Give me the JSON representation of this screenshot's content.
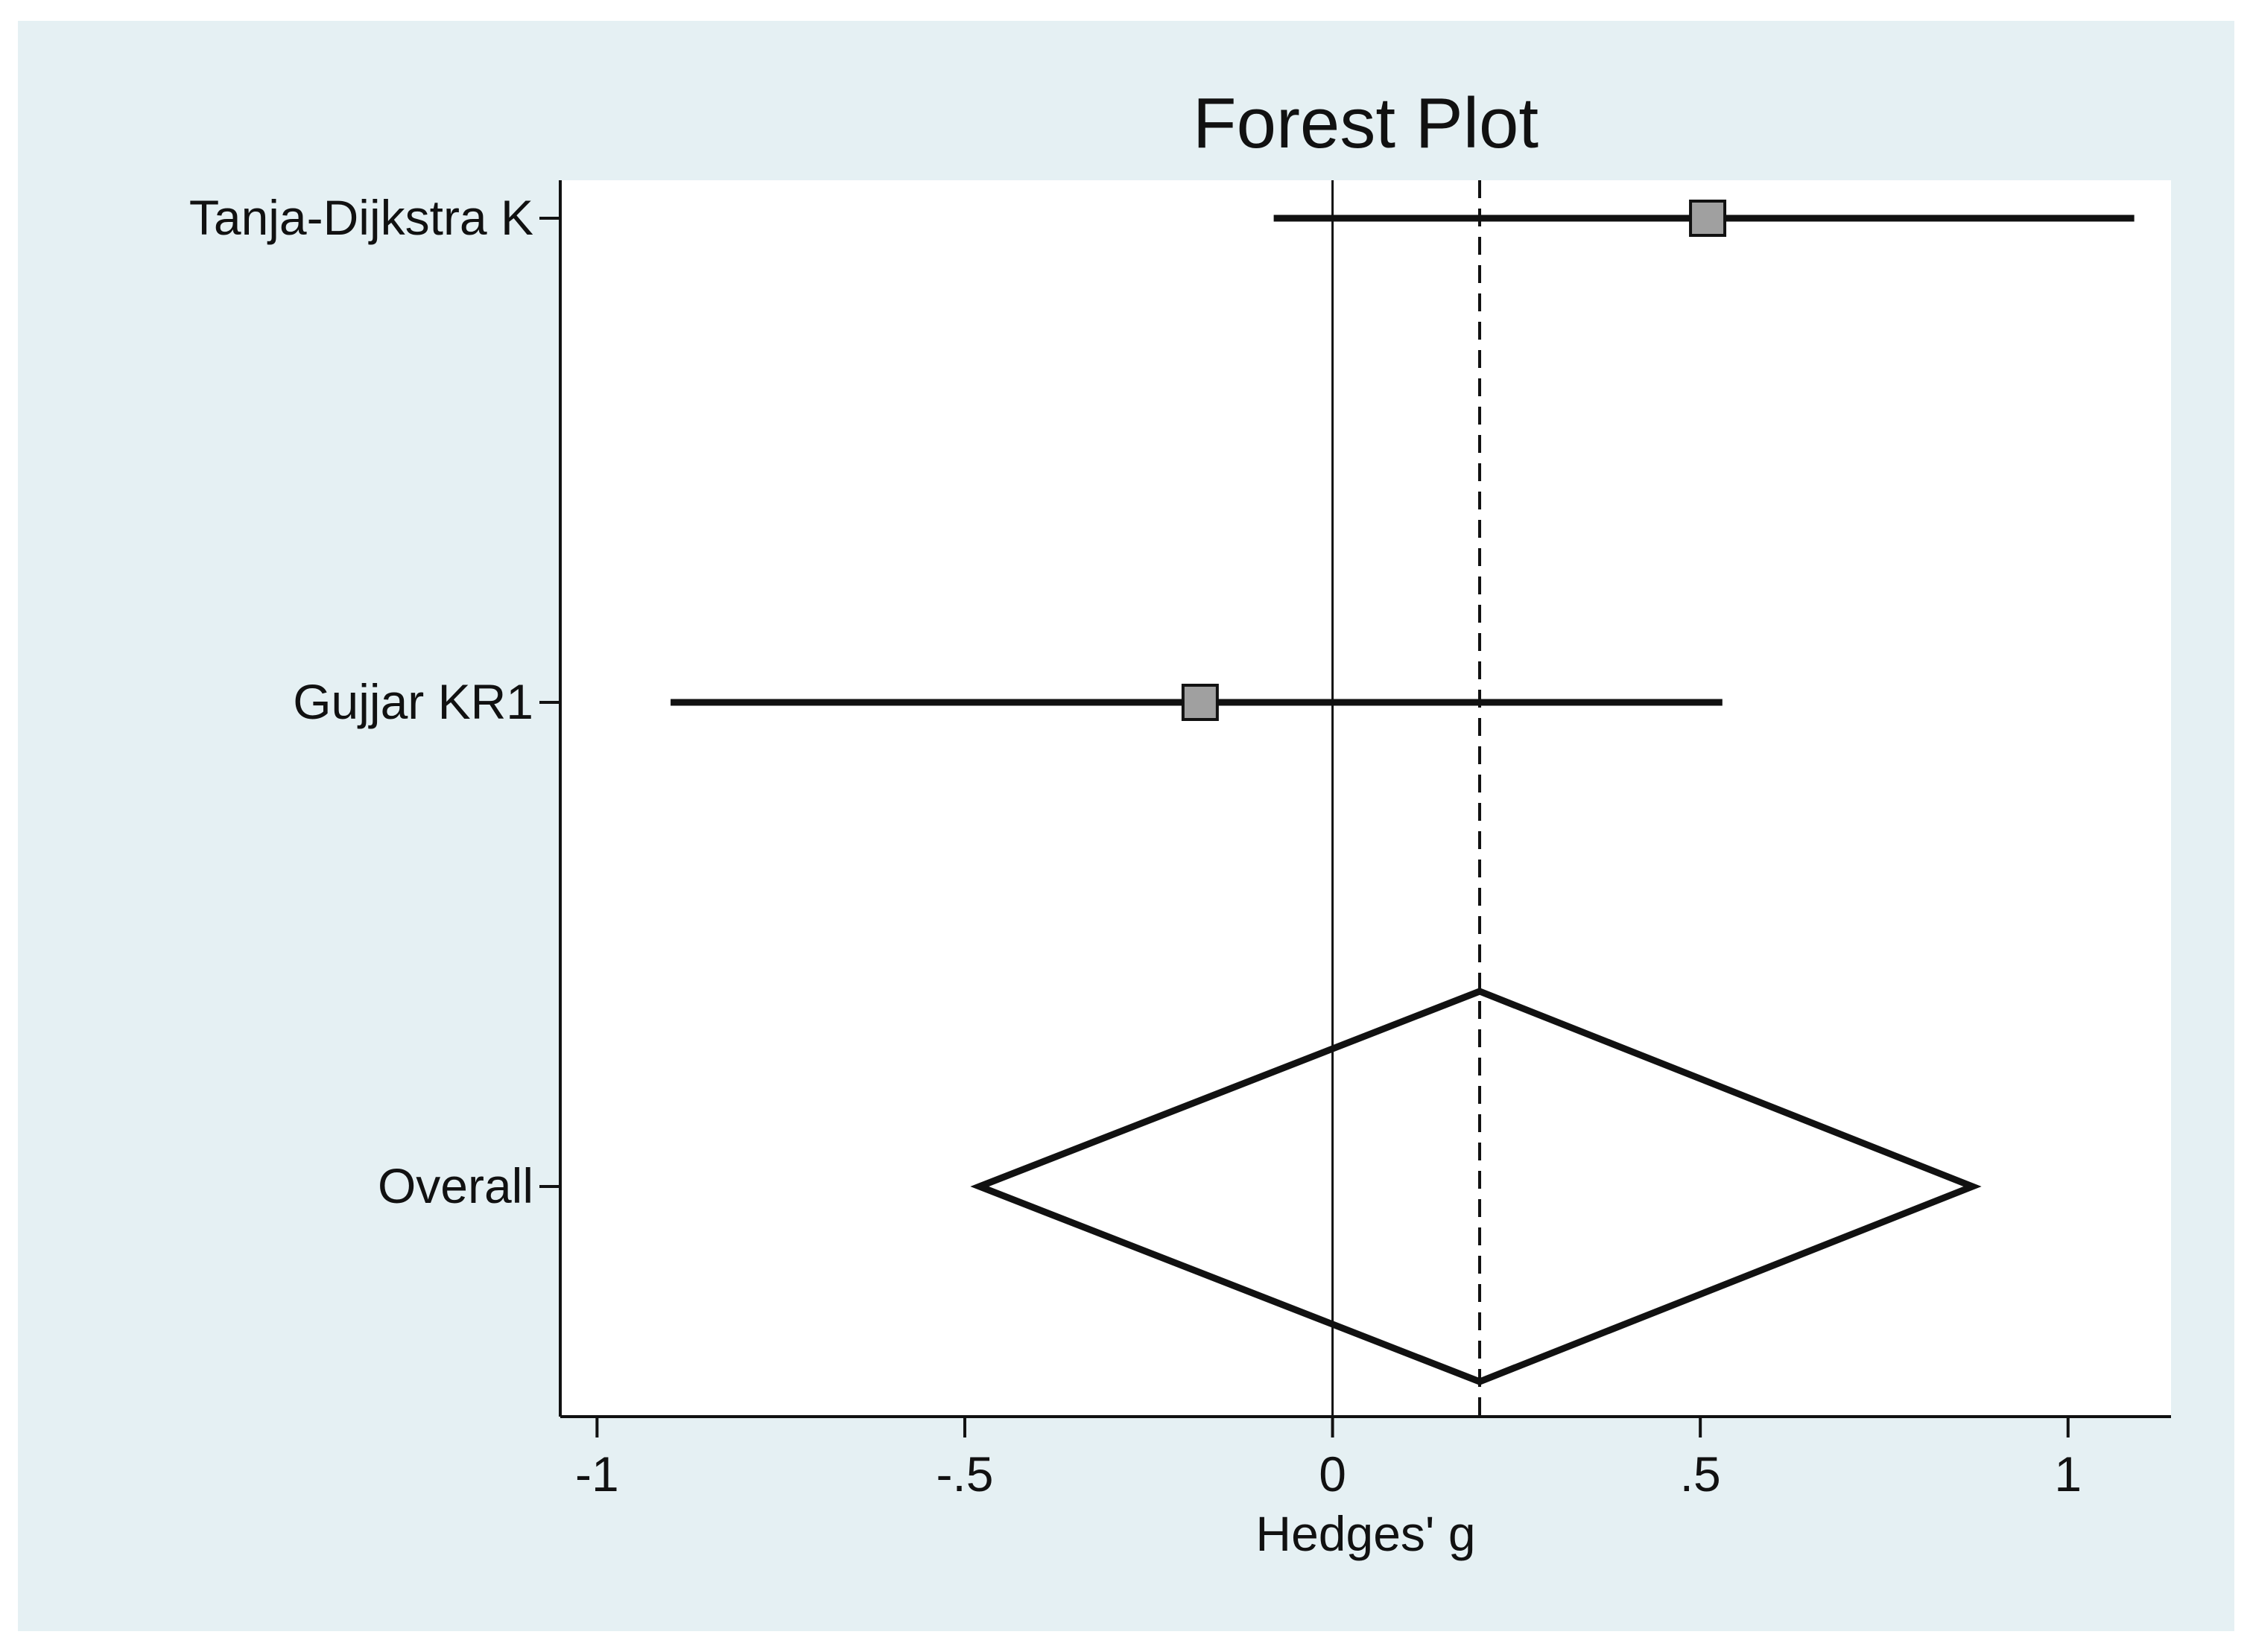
{
  "chart_data": {
    "type": "forest",
    "title": "Forest Plot",
    "xlabel": "Hedges' g",
    "ylabel": "",
    "xlim": [
      -1.05,
      1.14
    ],
    "xticks": [
      {
        "value": -1,
        "label": "-1"
      },
      {
        "value": -0.5,
        "label": "-.5"
      },
      {
        "value": 0,
        "label": "0"
      },
      {
        "value": 0.5,
        "label": ".5"
      },
      {
        "value": 1,
        "label": "1"
      }
    ],
    "null_line": 0,
    "overall_line": 0.2,
    "studies": [
      {
        "label": "Tanja-Dijkstra K",
        "estimate": 0.51,
        "ci_low": -0.08,
        "ci_high": 1.09
      },
      {
        "label": "Gujjar KR1",
        "estimate": -0.18,
        "ci_low": -0.9,
        "ci_high": 0.53
      }
    ],
    "overall": {
      "label": "Overall",
      "estimate": 0.2,
      "ci_low": -0.48,
      "ci_high": 0.87
    },
    "colors": {
      "outer_background": "#e5f0f3",
      "plot_background": "#ffffff",
      "marker_fill": "#a0a0a0",
      "line": "#111111"
    }
  }
}
